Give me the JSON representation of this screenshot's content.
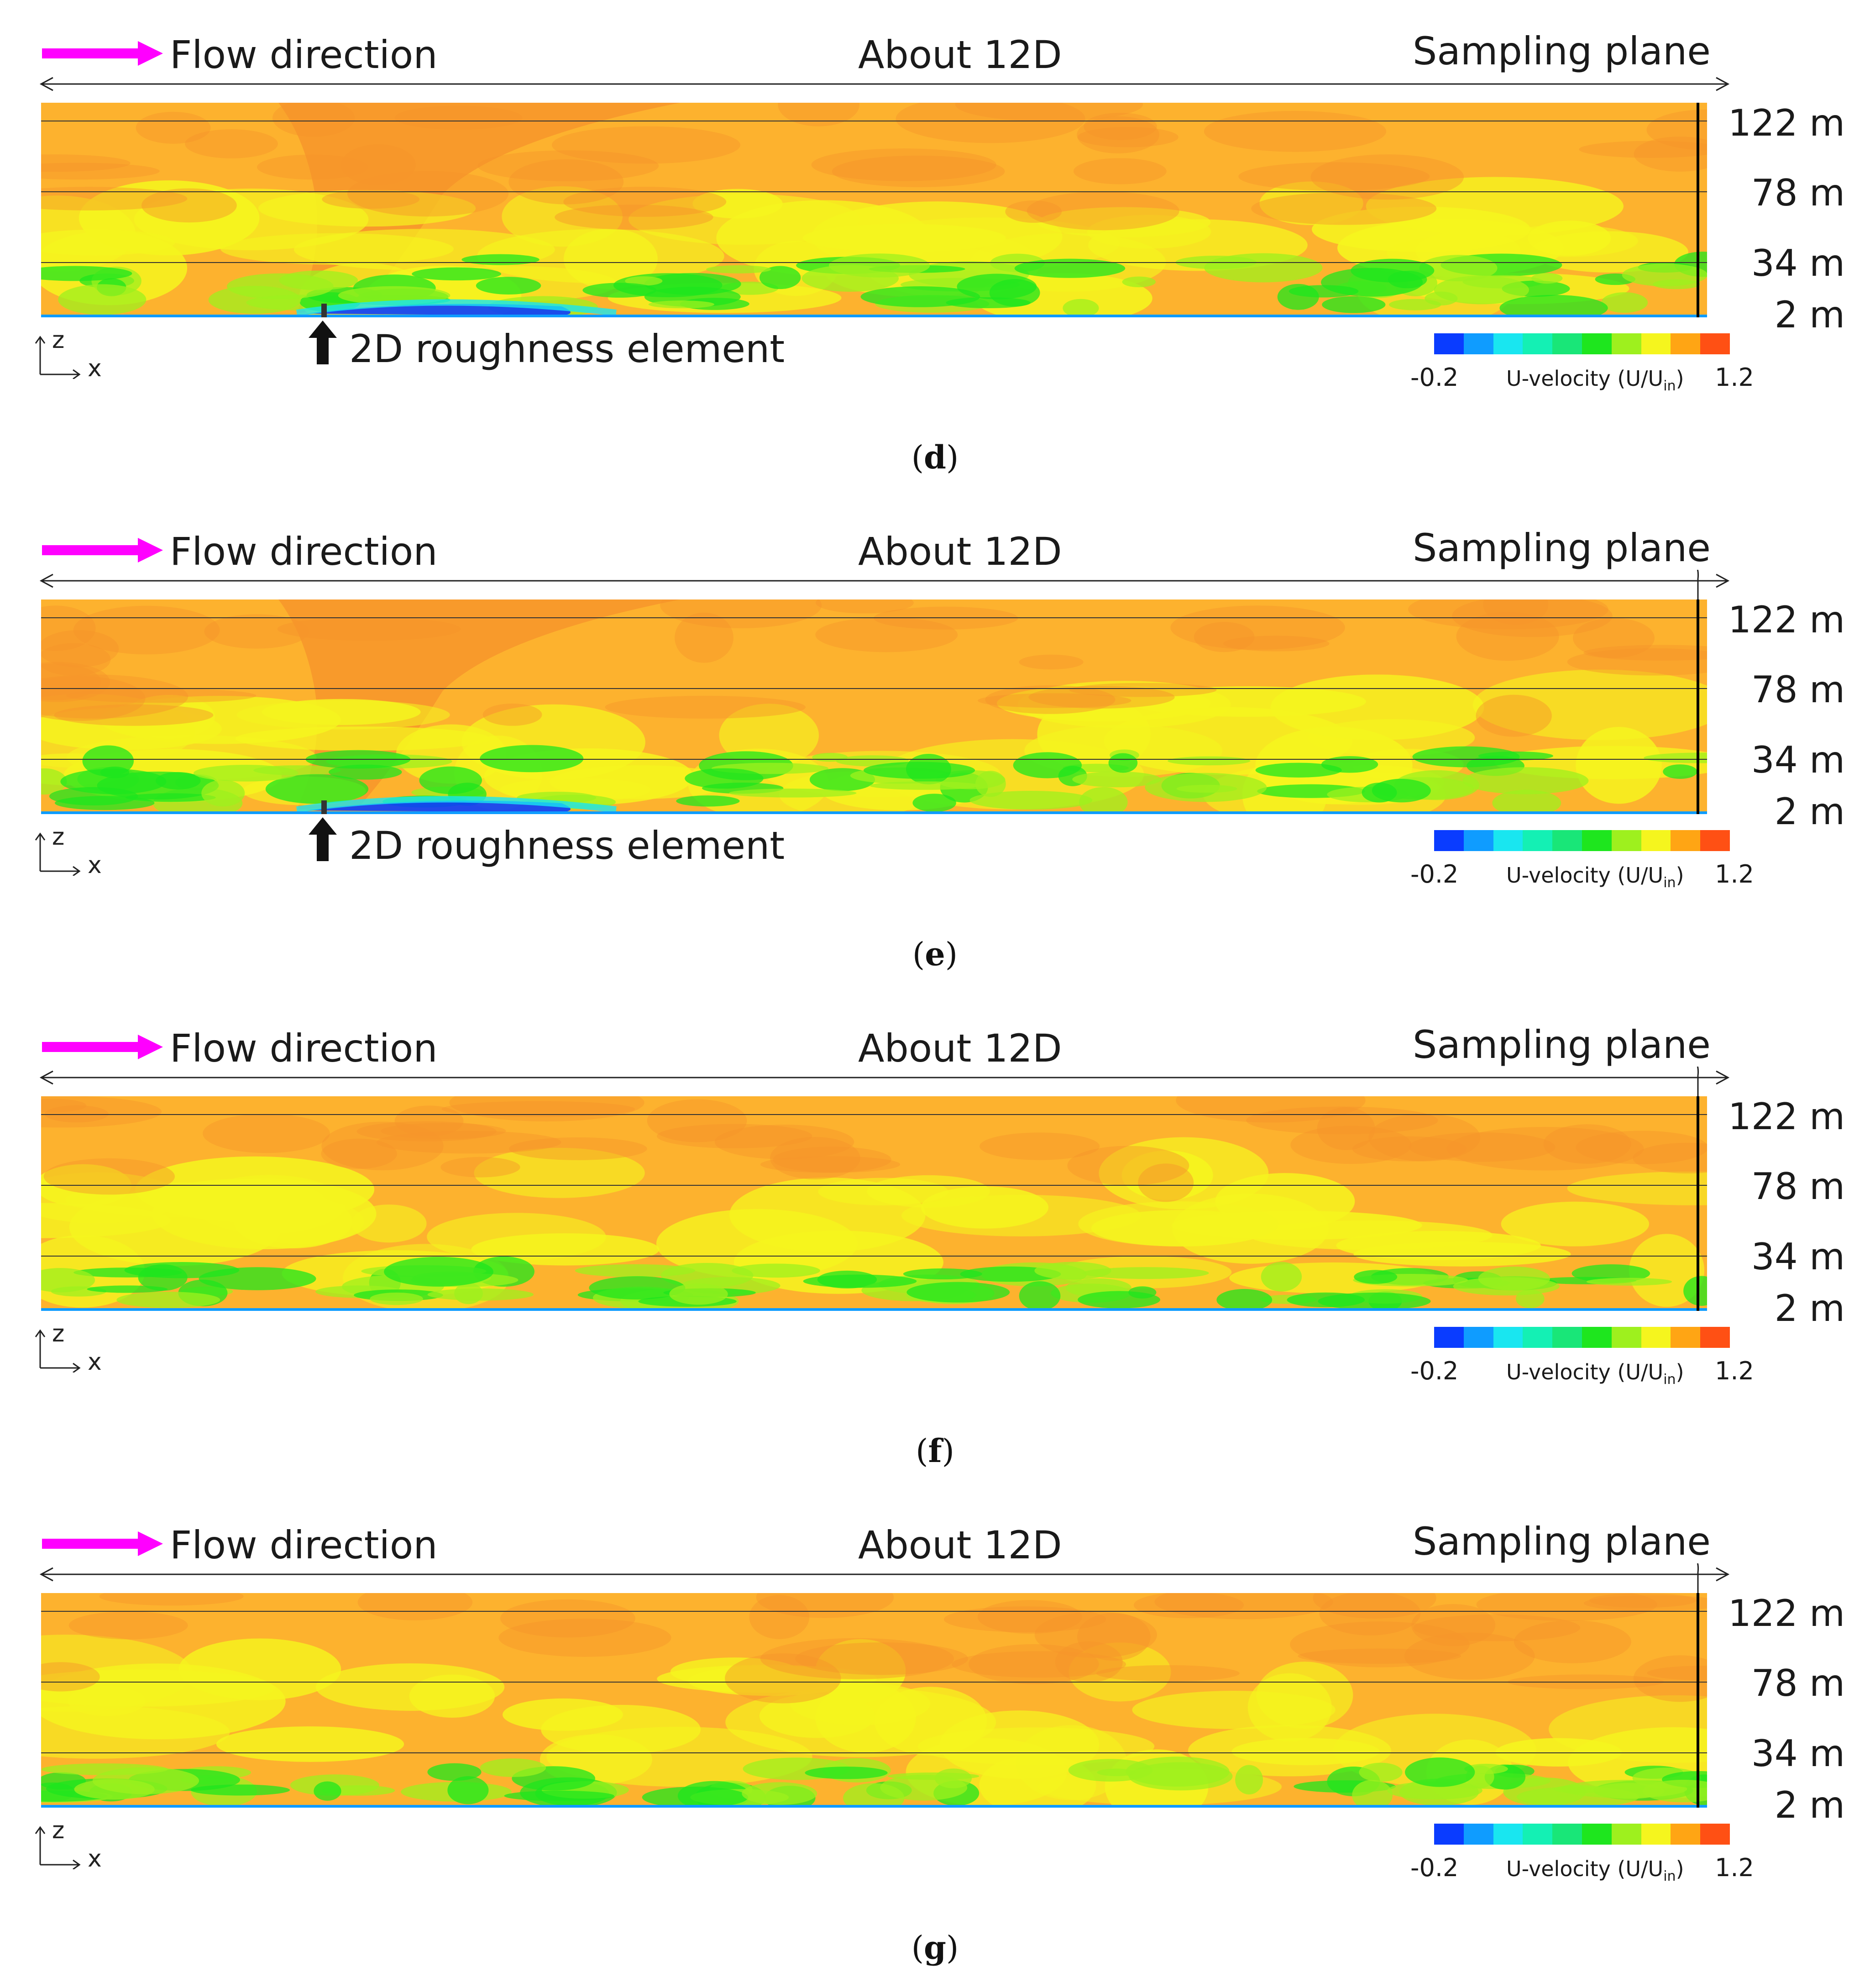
{
  "colors": {
    "flow_arrow": "#ff00ff",
    "field_base": "#fdb22e",
    "colormap": [
      "#0a3cff",
      "#0f9cff",
      "#19e6f0",
      "#14f0b4",
      "#19e678",
      "#1ee61e",
      "#9ef01e",
      "#f5f51e",
      "#ffa514",
      "#ff5014"
    ]
  },
  "panels": [
    {
      "id": "d",
      "flow_label": "Flow direction",
      "span_label": "About 12D",
      "sampling_label": "Sampling plane",
      "heights": [
        "122 m",
        "78 m",
        "34 m",
        "2 m"
      ],
      "roughness_label": "2D roughness element",
      "axis_z": "z",
      "axis_x": "x",
      "colorbar": {
        "min": "-0.2",
        "max": "1.2",
        "title": "U-velocity (U/U",
        "title_sub": "in",
        "title_end": ")"
      },
      "caption": "d"
    },
    {
      "id": "e",
      "flow_label": "Flow direction",
      "span_label": "About 12D",
      "sampling_label": "Sampling plane",
      "heights": [
        "122 m",
        "78 m",
        "34 m",
        "2 m"
      ],
      "roughness_label": "2D roughness element",
      "axis_z": "z",
      "axis_x": "x",
      "colorbar": {
        "min": "-0.2",
        "max": "1.2",
        "title": "U-velocity (U/U",
        "title_sub": "in",
        "title_end": ")"
      },
      "caption": "e"
    },
    {
      "id": "f",
      "flow_label": "Flow direction",
      "span_label": "About 12D",
      "sampling_label": "Sampling plane",
      "heights": [
        "122 m",
        "78 m",
        "34 m",
        "2 m"
      ],
      "axis_z": "z",
      "axis_x": "x",
      "colorbar": {
        "min": "-0.2",
        "max": "1.2",
        "title": "U-velocity (U/U",
        "title_sub": "in",
        "title_end": ")"
      },
      "caption": "f"
    },
    {
      "id": "g",
      "flow_label": "Flow direction",
      "span_label": "About 12D",
      "sampling_label": "Sampling plane",
      "heights": [
        "122 m",
        "78 m",
        "34 m",
        "2 m"
      ],
      "axis_z": "z",
      "axis_x": "x",
      "colorbar": {
        "min": "-0.2",
        "max": "1.2",
        "title": "U-velocity (U/U",
        "title_sub": "in",
        "title_end": ")"
      },
      "caption": "g"
    }
  ]
}
